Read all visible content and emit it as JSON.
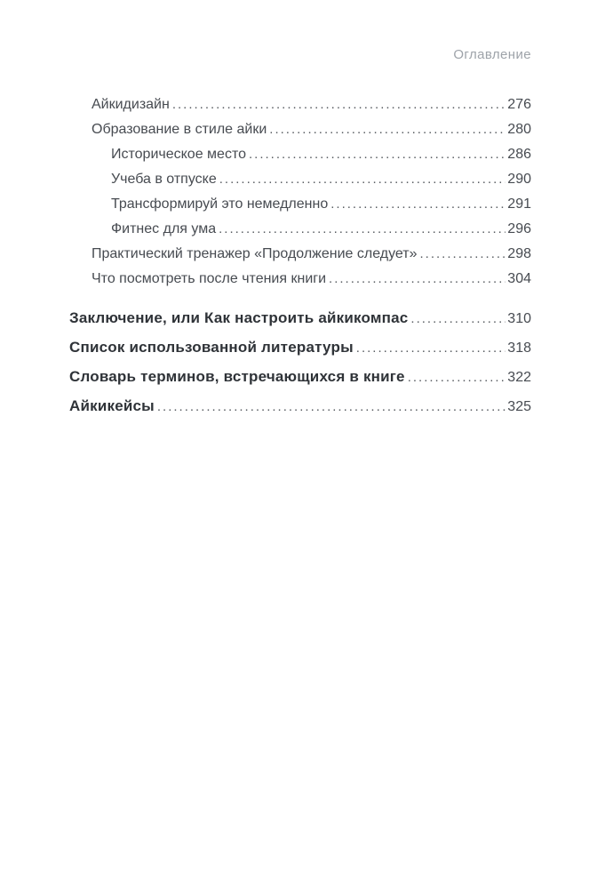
{
  "header": {
    "title": "Оглавление"
  },
  "toc": {
    "entries": [
      {
        "label": "Айкидизайн",
        "page": "276",
        "indent": 1
      },
      {
        "label": "Образование в стиле айки",
        "page": "280",
        "indent": 1
      },
      {
        "label": "Историческое место",
        "page": "286",
        "indent": 2
      },
      {
        "label": "Учеба в отпуске",
        "page": "290",
        "indent": 2
      },
      {
        "label": "Трансформируй это немедленно",
        "page": "291",
        "indent": 2
      },
      {
        "label": "Фитнес для ума",
        "page": "296",
        "indent": 2
      },
      {
        "label": "Практический тренажер «Продолжение следует»",
        "page": "298",
        "indent": 1
      },
      {
        "label": "Что посмотреть после чтения книги",
        "page": "304",
        "indent": 1
      }
    ],
    "sections": [
      {
        "label": "Заключение, или Как настроить айкикомпас",
        "page": "310"
      },
      {
        "label": "Список использованной литературы",
        "page": "318"
      },
      {
        "label": "Словарь терминов, встречающихся в книге",
        "page": "322"
      },
      {
        "label": "Айкикейсы",
        "page": "325"
      }
    ]
  },
  "colors": {
    "text": "#474b51",
    "bold_text": "#2f3338",
    "header_muted": "#9ea3a9",
    "dot_leader": "#5a5e63",
    "background": "#ffffff"
  }
}
